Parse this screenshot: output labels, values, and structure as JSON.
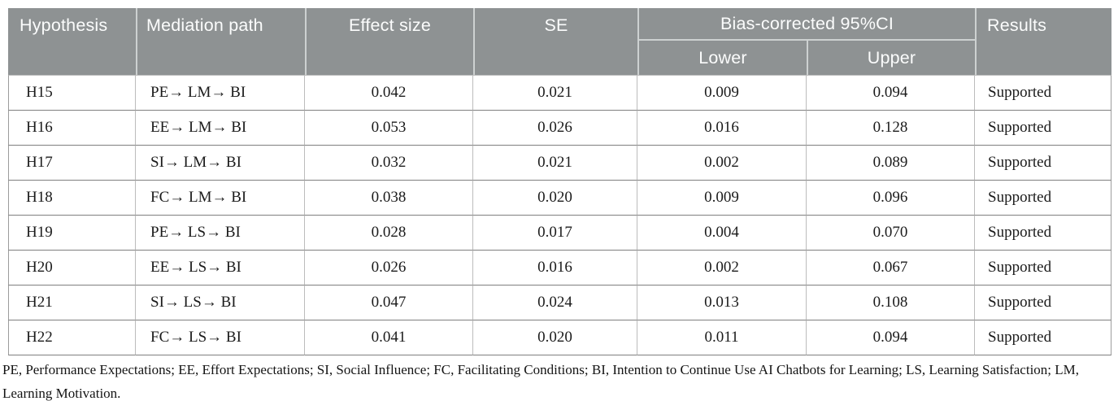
{
  "header": {
    "hypothesis": "Hypothesis",
    "mediation_path": "Mediation path",
    "effect_size": "Effect size",
    "se": "SE",
    "ci_group": "Bias-corrected 95%CI",
    "ci_lower": "Lower",
    "ci_upper": "Upper",
    "results": "Results"
  },
  "rows": [
    {
      "hypothesis": "H15",
      "path": "PE→ LM→ BI",
      "effect": "0.042",
      "se": "0.021",
      "lower": "0.009",
      "upper": "0.094",
      "result": "Supported"
    },
    {
      "hypothesis": "H16",
      "path": "EE→ LM→ BI",
      "effect": "0.053",
      "se": "0.026",
      "lower": "0.016",
      "upper": "0.128",
      "result": "Supported"
    },
    {
      "hypothesis": "H17",
      "path": "SI→ LM→ BI",
      "effect": "0.032",
      "se": "0.021",
      "lower": "0.002",
      "upper": "0.089",
      "result": "Supported"
    },
    {
      "hypothesis": "H18",
      "path": "FC→ LM→ BI",
      "effect": "0.038",
      "se": "0.020",
      "lower": "0.009",
      "upper": "0.096",
      "result": "Supported"
    },
    {
      "hypothesis": "H19",
      "path": "PE→ LS→ BI",
      "effect": "0.028",
      "se": "0.017",
      "lower": "0.004",
      "upper": "0.070",
      "result": "Supported"
    },
    {
      "hypothesis": "H20",
      "path": "EE→ LS→ BI",
      "effect": "0.026",
      "se": "0.016",
      "lower": "0.002",
      "upper": "0.067",
      "result": "Supported"
    },
    {
      "hypothesis": "H21",
      "path": "SI→ LS→ BI",
      "effect": "0.047",
      "se": "0.024",
      "lower": "0.013",
      "upper": "0.108",
      "result": "Supported"
    },
    {
      "hypothesis": "H22",
      "path": "FC→ LS→ BI",
      "effect": "0.041",
      "se": "0.020",
      "lower": "0.011",
      "upper": "0.094",
      "result": "Supported"
    }
  ],
  "footnote": "PE, Performance Expectations; EE, Effort Expectations; SI, Social Influence; FC, Facilitating Conditions; BI, Intention to Continue Use AI Chatbots for Learning; LS, Learning Satisfaction; LM, Learning Motivation.",
  "colors": {
    "header_bg": "#8e9293",
    "header_text": "#fbfcfc",
    "header_divider": "#cdd1d1",
    "body_text": "#1b1b1b",
    "row_border": "#7f7f7f",
    "col_border": "#bcbcbc"
  }
}
